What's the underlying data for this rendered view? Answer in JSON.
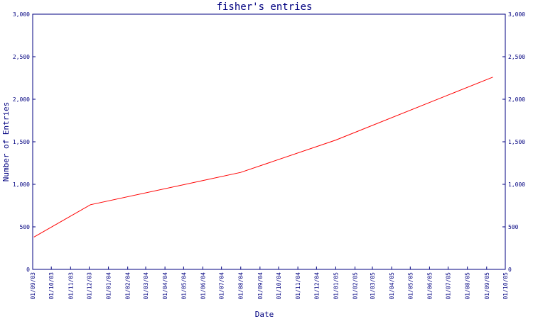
{
  "chart_data": {
    "type": "line",
    "title": "fisher's entries",
    "xlabel": "Date",
    "ylabel": "Number of Entries",
    "ylim": [
      0,
      3000
    ],
    "yticks": [
      0,
      500,
      1000,
      1500,
      2000,
      2500,
      3000
    ],
    "ytick_labels": [
      "0",
      "500",
      "1,000",
      "1,500",
      "2,000",
      "2,500",
      "3,000"
    ],
    "xtick_labels": [
      "01/09/03",
      "01/10/03",
      "01/11/03",
      "01/12/03",
      "01/01/04",
      "01/02/04",
      "01/03/04",
      "01/04/04",
      "01/05/04",
      "01/06/04",
      "01/07/04",
      "01/08/04",
      "01/09/04",
      "01/10/04",
      "01/11/04",
      "01/12/04",
      "01/01/05",
      "01/02/05",
      "01/03/05",
      "01/04/05",
      "01/05/05",
      "01/06/05",
      "01/07/05",
      "01/08/05",
      "01/09/05",
      "01/10/05"
    ],
    "series": [
      {
        "x": [
          "2003-09-03",
          "2003-12-03",
          "2004-08-01",
          "2005-01-01",
          "2005-09-11"
        ],
        "y": [
          380,
          760,
          1140,
          1520,
          2260
        ]
      }
    ],
    "right_axis": true,
    "grid": false,
    "colors": {
      "axis": "#000080",
      "line": "#ff0000",
      "text": "#000080"
    }
  }
}
